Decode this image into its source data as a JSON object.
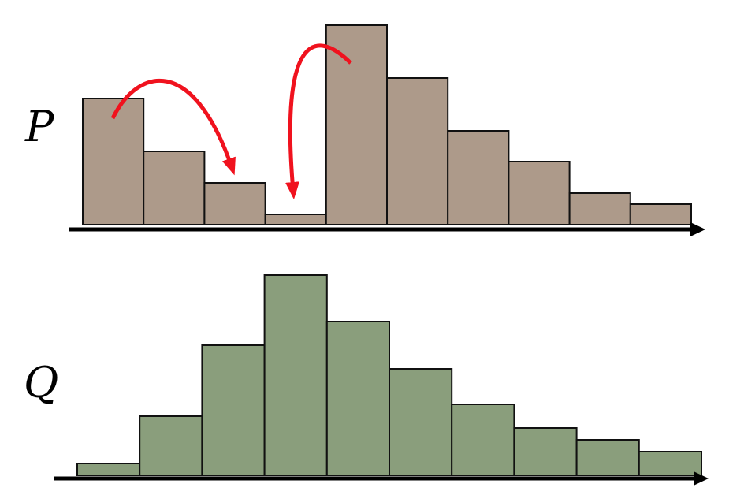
{
  "chart_data": [
    {
      "type": "bar",
      "title": "P",
      "color": "#ad9a8a",
      "categories": [
        null,
        null,
        null,
        null,
        null,
        null,
        null,
        null,
        null,
        null
      ],
      "values": [
        160,
        93,
        53,
        13,
        253,
        186,
        119,
        80,
        40,
        26
      ],
      "ylim": [
        0,
        260
      ]
    },
    {
      "type": "bar",
      "title": "Q",
      "color": "#8a9e7c",
      "categories": [
        null,
        null,
        null,
        null,
        null,
        null,
        null,
        null,
        null,
        null
      ],
      "values": [
        15,
        75,
        165,
        254,
        195,
        135,
        90,
        60,
        45,
        30
      ],
      "ylim": [
        0,
        260
      ]
    }
  ]
}
